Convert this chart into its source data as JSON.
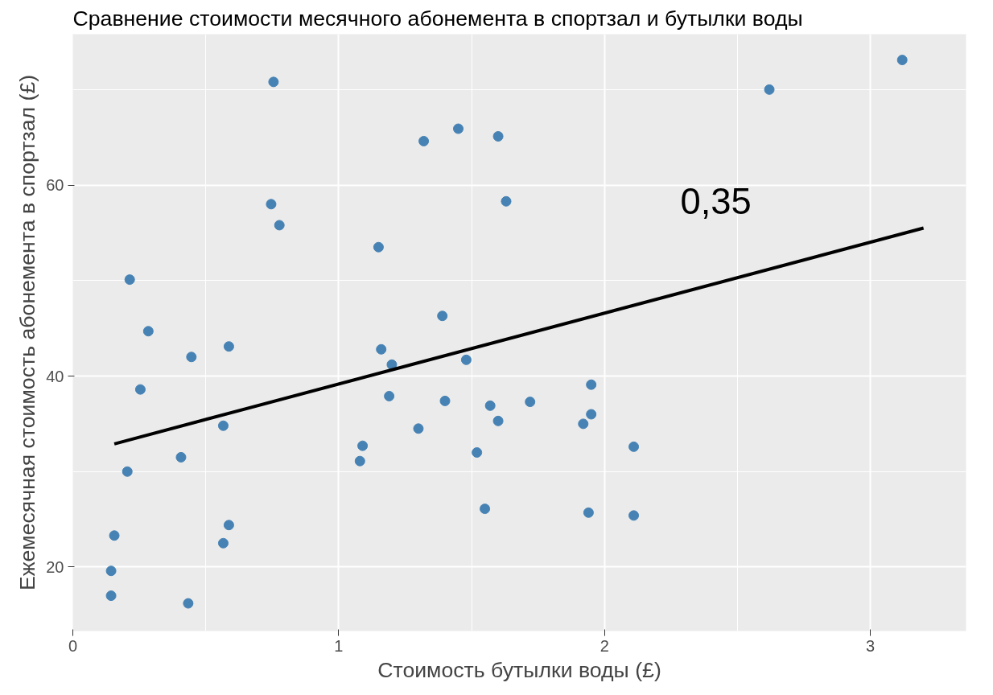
{
  "chart_data": {
    "type": "scatter",
    "title": "Сравнение стоимости месячного абонемента в спортзал и бутылки воды",
    "xlabel": "Стоимость бутылки воды (£)",
    "ylabel": "Ежемесячная стоимость абонемента в спортзал (£)",
    "xlim": [
      0,
      3.36
    ],
    "ylim": [
      13.3,
      75.8
    ],
    "xticks": [
      0,
      1,
      2,
      3
    ],
    "yticks": [
      20,
      40,
      60
    ],
    "grid": true,
    "series": [
      {
        "color": "#4682b4",
        "marker": "circle",
        "x": [
          0.755,
          3.12,
          2.62,
          1.32,
          1.45,
          1.6,
          1.63,
          0.746,
          0.777,
          1.15,
          0.214,
          0.284,
          1.39,
          0.446,
          0.587,
          1.16,
          1.2,
          1.48,
          0.254,
          1.95,
          1.19,
          1.4,
          1.57,
          1.72,
          1.6,
          1.95,
          1.92,
          0.566,
          1.3,
          1.09,
          1.08,
          1.52,
          2.11,
          0.407,
          0.205,
          1.55,
          1.94,
          2.11,
          0.587,
          0.566,
          0.156,
          0.144,
          0.144,
          0.434
        ],
        "values": [
          70.8,
          73.1,
          70.0,
          64.6,
          65.9,
          65.1,
          58.3,
          58.0,
          55.8,
          53.5,
          50.1,
          44.7,
          46.3,
          42.0,
          43.1,
          42.8,
          41.2,
          41.7,
          38.6,
          39.1,
          37.9,
          37.4,
          36.9,
          37.3,
          35.3,
          36.0,
          35.0,
          34.8,
          34.5,
          32.7,
          31.1,
          32.0,
          32.6,
          31.5,
          30.0,
          26.1,
          25.7,
          25.4,
          24.4,
          22.5,
          23.3,
          19.6,
          17.0,
          16.2
        ]
      },
      {
        "type": "line",
        "color": "#000000",
        "x": [
          0.156,
          3.2
        ],
        "values": [
          32.9,
          55.5
        ]
      }
    ],
    "annotations": [
      "0,35"
    ]
  }
}
